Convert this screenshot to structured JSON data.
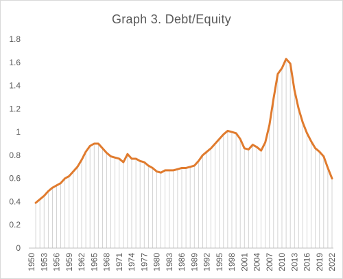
{
  "chart_data": {
    "type": "line",
    "title": "Graph  3. Debt/Equity",
    "xlabel": "",
    "ylabel": "",
    "ylim": [
      0,
      1.8
    ],
    "y_ticks": [
      0,
      0.2,
      0.4,
      0.6,
      0.8,
      1,
      1.2,
      1.4,
      1.6,
      1.8
    ],
    "y_tick_labels": [
      "0",
      "0.2",
      "0.4",
      "0.6",
      "0.8",
      "1",
      "1.2",
      "1.4",
      "1.6",
      "1.8"
    ],
    "x_tick_labels": [
      "1950",
      "1953",
      "1956",
      "1959",
      "1962",
      "1965",
      "1968",
      "1971",
      "1974",
      "1977",
      "1980",
      "1983",
      "1986",
      "1989",
      "1992",
      "1995",
      "1998",
      "2001",
      "2004",
      "2007",
      "2010",
      "2013",
      "2016",
      "2019",
      "2022"
    ],
    "x_range": [
      1950,
      2022
    ],
    "grid": false,
    "drop_lines": true,
    "line_color": "#e07b2e",
    "series": [
      {
        "x": [
          1951,
          1952,
          1953,
          1954,
          1955,
          1956,
          1957,
          1958,
          1959,
          1960,
          1961,
          1962,
          1963,
          1964,
          1965,
          1966,
          1967,
          1968,
          1969,
          1970,
          1971,
          1972,
          1973,
          1974,
          1975,
          1976,
          1977,
          1978,
          1979,
          1980,
          1981,
          1982,
          1983,
          1984,
          1985,
          1986,
          1987,
          1988,
          1989,
          1990,
          1991,
          1992,
          1993,
          1994,
          1995,
          1996,
          1997,
          1998,
          1999,
          2000,
          2001,
          2002,
          2003,
          2004,
          2005,
          2006,
          2007,
          2008,
          2009,
          2010,
          2011,
          2012,
          2013,
          2014,
          2015,
          2016,
          2017,
          2018,
          2019,
          2020,
          2021,
          2022
        ],
        "values": [
          0.39,
          0.42,
          0.45,
          0.49,
          0.52,
          0.54,
          0.56,
          0.6,
          0.62,
          0.66,
          0.7,
          0.76,
          0.83,
          0.88,
          0.9,
          0.9,
          0.86,
          0.82,
          0.79,
          0.78,
          0.77,
          0.74,
          0.81,
          0.77,
          0.77,
          0.75,
          0.74,
          0.71,
          0.69,
          0.66,
          0.65,
          0.67,
          0.67,
          0.67,
          0.68,
          0.69,
          0.69,
          0.7,
          0.71,
          0.75,
          0.8,
          0.83,
          0.86,
          0.9,
          0.94,
          0.98,
          1.01,
          1.0,
          0.99,
          0.94,
          0.86,
          0.85,
          0.89,
          0.87,
          0.84,
          0.91,
          1.06,
          1.29,
          1.5,
          1.55,
          1.63,
          1.59,
          1.36,
          1.2,
          1.08,
          0.99,
          0.92,
          0.86,
          0.83,
          0.79,
          0.69,
          0.6
        ]
      }
    ]
  }
}
